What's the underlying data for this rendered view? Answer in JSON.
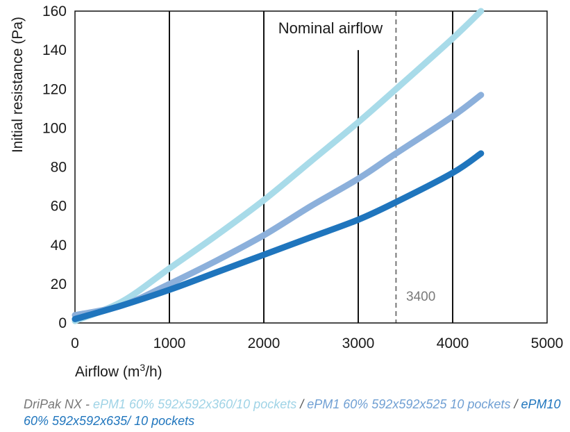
{
  "chart_data": {
    "type": "line",
    "xlabel_pre": "Airflow (m",
    "xlabel_sup": "3",
    "xlabel_post": "/h)",
    "ylabel": "Initial resistance (Pa)",
    "xlim": [
      0,
      5000
    ],
    "ylim": [
      0,
      160
    ],
    "x_ticks": [
      "0",
      "1000",
      "2000",
      "3000",
      "4000",
      "5000"
    ],
    "y_ticks": [
      "0",
      "20",
      "40",
      "60",
      "80",
      "100",
      "120",
      "140",
      "160"
    ],
    "grid": "vertical",
    "nominal_airflow": {
      "label": "Nominal airflow",
      "value": "3400",
      "x": 3400
    },
    "series": [
      {
        "name": "ePM1 60% 592x592x360/10 pockets",
        "color": "#a8dbe9",
        "x": [
          0,
          500,
          1000,
          1500,
          2000,
          2500,
          3000,
          3400,
          4000,
          4300
        ],
        "y": [
          1,
          11,
          28,
          45,
          63,
          83,
          103,
          120,
          146,
          160
        ]
      },
      {
        "name": "ePM1 60% 592x592x525 10 pockets",
        "color": "#8cb0db",
        "x": [
          0,
          500,
          1000,
          1500,
          2000,
          2500,
          3000,
          3400,
          4000,
          4300
        ],
        "y": [
          4,
          9,
          20,
          32,
          45,
          60,
          74,
          87,
          106,
          117
        ]
      },
      {
        "name": "ePM10 60% 592x592x635/ 10 pockets",
        "color": "#1f75bd",
        "x": [
          0,
          500,
          1000,
          1500,
          2000,
          2500,
          3000,
          3400,
          4000,
          4300
        ],
        "y": [
          2,
          9,
          17,
          26,
          35,
          44,
          53,
          62,
          77,
          87
        ]
      }
    ]
  },
  "legend": {
    "prefix": "DriPak NX - ",
    "separator": " / "
  }
}
